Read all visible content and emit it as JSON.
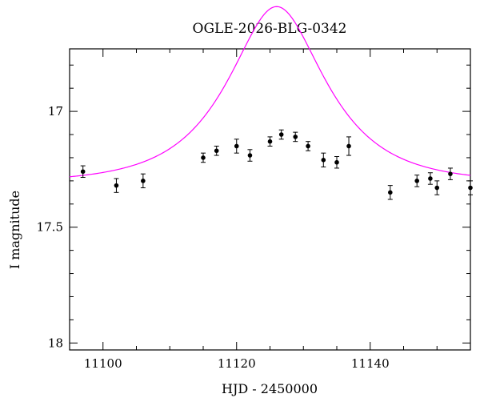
{
  "chart_data": {
    "type": "scatter",
    "title": "OGLE-2026-BLG-0342",
    "xlabel": "HJD - 2450000",
    "ylabel": "I magnitude",
    "xlim": [
      11095,
      11155
    ],
    "ylim": [
      18.03,
      16.73
    ],
    "y_inverted": true,
    "x_major_ticks": [
      11100,
      11120,
      11140
    ],
    "x_tick_labels": [
      "11100",
      "11120",
      "11140"
    ],
    "x_minor_step": 5,
    "y_major_ticks": [
      17,
      17.5,
      18
    ],
    "y_tick_labels": [
      "17",
      "17.5",
      "18"
    ],
    "y_minor_step": 0.1,
    "grid": false,
    "colors": {
      "data": "#000000",
      "model": "#ff00ff"
    },
    "series": [
      {
        "kind": "points_with_errorbars",
        "points": [
          {
            "x": 11097.0,
            "y": 17.26,
            "err": 0.025
          },
          {
            "x": 11102.0,
            "y": 17.32,
            "err": 0.03
          },
          {
            "x": 11106.0,
            "y": 17.3,
            "err": 0.03
          },
          {
            "x": 11115.0,
            "y": 17.2,
            "err": 0.02
          },
          {
            "x": 11117.0,
            "y": 17.17,
            "err": 0.02
          },
          {
            "x": 11120.0,
            "y": 17.15,
            "err": 0.03
          },
          {
            "x": 11122.0,
            "y": 17.19,
            "err": 0.025
          },
          {
            "x": 11125.0,
            "y": 17.13,
            "err": 0.02
          },
          {
            "x": 11126.7,
            "y": 17.1,
            "err": 0.02
          },
          {
            "x": 11128.8,
            "y": 17.11,
            "err": 0.02
          },
          {
            "x": 11130.7,
            "y": 17.15,
            "err": 0.02
          },
          {
            "x": 11133.0,
            "y": 17.21,
            "err": 0.03
          },
          {
            "x": 11135.0,
            "y": 17.22,
            "err": 0.025
          },
          {
            "x": 11136.8,
            "y": 17.15,
            "err": 0.04
          },
          {
            "x": 11143.0,
            "y": 17.35,
            "err": 0.03
          },
          {
            "x": 11147.0,
            "y": 17.3,
            "err": 0.025
          },
          {
            "x": 11149.0,
            "y": 17.29,
            "err": 0.025
          },
          {
            "x": 11150.0,
            "y": 17.33,
            "err": 0.03
          },
          {
            "x": 11152.0,
            "y": 17.27,
            "err": 0.025
          },
          {
            "x": 11155.0,
            "y": 17.33,
            "err": 0.03
          }
        ]
      },
      {
        "kind": "model_curve",
        "model": "paczynski",
        "params": {
          "t0": 11126.0,
          "tE": 12.0,
          "u0": 0.55,
          "baseline": 17.31
        }
      }
    ]
  }
}
